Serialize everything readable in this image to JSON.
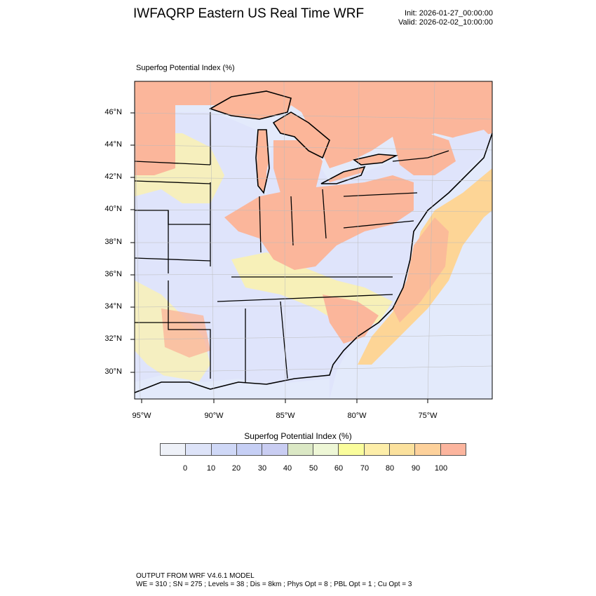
{
  "header": {
    "title": "IWFAQRP Eastern US Real Time WRF",
    "init": "Init: 2026-01-27_00:00:00",
    "valid": "Valid: 2026-02-02_10:00:00"
  },
  "map": {
    "panel_title": "Superfog Potential Index   (%)",
    "lat_labels": [
      "46°N",
      "44°N",
      "42°N",
      "40°N",
      "38°N",
      "36°N",
      "34°N",
      "32°N",
      "30°N"
    ],
    "lon_labels": [
      "95°W",
      "90°W",
      "85°W",
      "80°W",
      "75°W"
    ],
    "colors": {
      "land_low": "#dfe4fb",
      "land_mid": "#fdf3a8",
      "land_high": "#fcb597",
      "water": "#e5ecfb",
      "lake": "#fcb699",
      "ocean_warm": "#fdd596",
      "ocean_hot": "#fbbb99"
    }
  },
  "colorbar": {
    "title": "Superfog Potential Index  (%)",
    "colors": [
      "#eef1f8",
      "#dde3f8",
      "#cfd8f7",
      "#c6cff5",
      "#c9cdf2",
      "#dbe8c5",
      "#eef7d6",
      "#fafd9c",
      "#fdeea9",
      "#fbe19d",
      "#fdd19b",
      "#fcb59e"
    ],
    "labels": [
      "0",
      "10",
      "20",
      "30",
      "40",
      "50",
      "60",
      "70",
      "80",
      "90",
      "100"
    ]
  },
  "footer": {
    "line1": "OUTPUT FROM WRF V4.6.1 MODEL",
    "line2": "WE = 310 ; SN = 275 ; Levels = 38 ; Dis = 8km ; Phys Opt = 8 ; PBL Opt = 1 ; Cu Opt = 3"
  }
}
